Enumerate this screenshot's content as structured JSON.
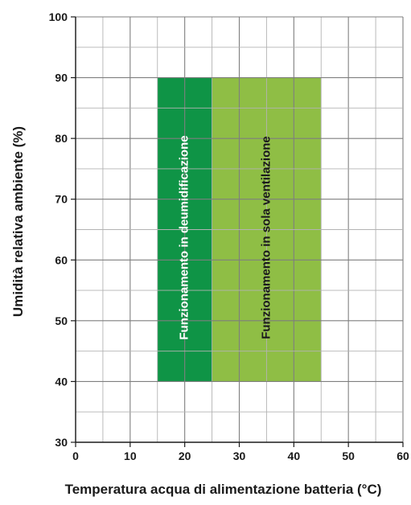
{
  "chart_data": {
    "type": "area",
    "xlabel": "Temperatura acqua di alimentazione batteria (°C)",
    "ylabel": "Umidità relativa ambiente (%)",
    "xlim": [
      0,
      60
    ],
    "ylim": [
      30,
      100
    ],
    "x_ticks": [
      0,
      10,
      20,
      30,
      40,
      50,
      60
    ],
    "y_ticks": [
      30,
      40,
      50,
      60,
      70,
      80,
      90,
      100
    ],
    "x_ticks_labels": [
      "0",
      "10",
      "20",
      "30",
      "40",
      "50",
      "60"
    ],
    "y_ticks_labels": [
      "30",
      "40",
      "50",
      "60",
      "70",
      "80",
      "90",
      "100"
    ],
    "grid": true,
    "minor_grid_step_x": 5,
    "minor_grid_step_y": 5,
    "regions": [
      {
        "name": "Funzionamento in deumidificazione",
        "x_range": [
          15,
          25
        ],
        "y_range": [
          40,
          90
        ],
        "color": "#0f9446",
        "text_color": "#ffffff"
      },
      {
        "name": "Funzionamento in sola ventilazione",
        "x_range": [
          25,
          45
        ],
        "y_range": [
          40,
          90
        ],
        "color": "#8fbe45",
        "text_color": "#1a1a1a"
      }
    ]
  }
}
